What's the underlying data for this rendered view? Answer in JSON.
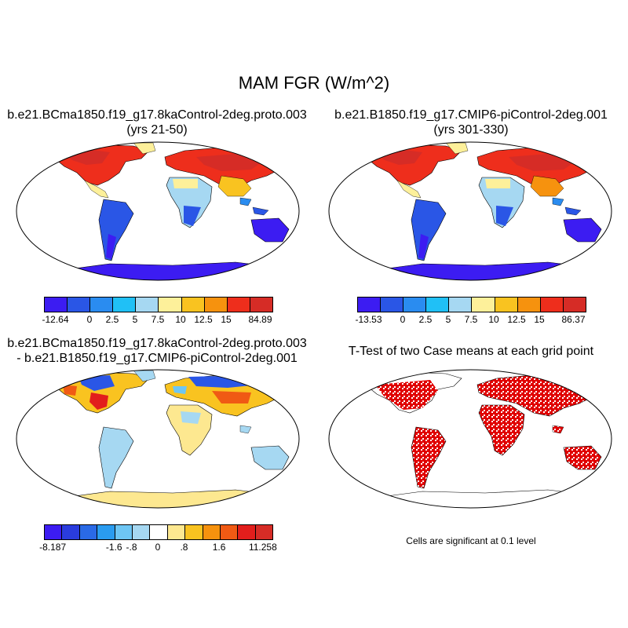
{
  "title": "MAM FGR (W/m^2)",
  "panels": {
    "top_left": {
      "title_line1": "b.e21.BCma1850.f19_g17.8kaControl-2deg.proto.003",
      "title_line2": "(yrs 21-50)"
    },
    "top_right": {
      "title_line1": "b.e21.B1850.f19_g17.CMIP6-piControl-2deg.001",
      "title_line2": "(yrs 301-330)"
    },
    "bottom_left": {
      "title_line1": "b.e21.BCma1850.f19_g17.8kaControl-2deg.proto.003",
      "title_line2": "- b.e21.B1850.f19_g17.CMIP6-piControl-2deg.001"
    },
    "bottom_right": {
      "title_line1": "T-Test of two Case means at each grid point",
      "note": "Cells are significant at 0.1 level"
    }
  },
  "colorbars": {
    "case1": {
      "colors": [
        "#3c1cf2",
        "#2a56e6",
        "#2a8cf0",
        "#20c0f6",
        "#a6d8f2",
        "#fdf09a",
        "#f9c320",
        "#f6920e",
        "#ee2e1c",
        "#d62c26"
      ],
      "labels": [
        "-12.64",
        "0",
        "2.5",
        "5",
        "7.5",
        "10",
        "12.5",
        "15",
        "84.89"
      ]
    },
    "case2": {
      "colors": [
        "#3c1cf2",
        "#2a56e6",
        "#2a8cf0",
        "#20c0f6",
        "#a6d8f2",
        "#fdf09a",
        "#f9c320",
        "#f6920e",
        "#ee2e1c",
        "#d62c26"
      ],
      "labels": [
        "-13.53",
        "0",
        "2.5",
        "5",
        "7.5",
        "10",
        "12.5",
        "15",
        "86.37"
      ]
    },
    "diff": {
      "colors": [
        "#3c1cf2",
        "#2a3cde",
        "#2a6ae6",
        "#2a9cf0",
        "#6ec6f4",
        "#a6d8f2",
        "#ffffff",
        "#fde890",
        "#f9c320",
        "#f6920e",
        "#f05a14",
        "#e21e1c",
        "#d62c26"
      ],
      "labels": [
        "-8.187",
        "-1.6",
        "-.8",
        "0",
        ".8",
        "1.6",
        "11.258"
      ]
    }
  }
}
